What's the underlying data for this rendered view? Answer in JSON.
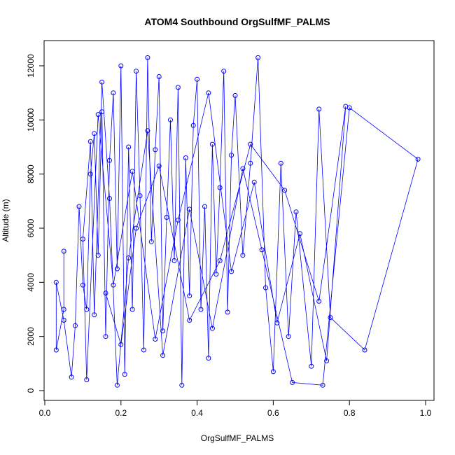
{
  "chart_data": {
    "type": "scatter",
    "title": "ATOM4 Southbound OrgSulfMF_PALMS",
    "xlabel": "OrgSulfMF_PALMS",
    "ylabel": "Altitude (m)",
    "xlim": [
      0.0,
      1.0
    ],
    "ylim": [
      0,
      12000
    ],
    "x_ticks": [
      0.0,
      0.2,
      0.4,
      0.6,
      0.8,
      1.0
    ],
    "x_tick_labels": [
      "0.0",
      "0.2",
      "0.4",
      "0.6",
      "0.8",
      "1.0"
    ],
    "y_ticks": [
      0,
      2000,
      4000,
      6000,
      8000,
      10000,
      12000
    ],
    "y_tick_labels": [
      "0",
      "2000",
      "4000",
      "6000",
      "8000",
      "10000",
      "12000"
    ],
    "grid": false,
    "legend": "none",
    "color": "#0000ff",
    "marker": "open-circle",
    "connected": true,
    "series": [
      {
        "x": [
          0.05,
          0.05,
          0.03,
          0.03,
          0.05,
          0.07,
          0.08,
          0.09,
          0.1,
          0.11,
          0.12,
          0.13,
          0.14,
          0.15,
          0.16,
          0.17,
          0.18,
          0.19,
          0.2,
          0.21,
          0.22,
          0.23,
          0.24,
          0.25,
          0.26,
          0.27,
          0.28,
          0.29,
          0.3,
          0.31,
          0.32,
          0.33,
          0.34,
          0.35,
          0.36,
          0.37,
          0.38,
          0.39,
          0.4,
          0.41,
          0.42,
          0.43,
          0.44,
          0.45,
          0.46,
          0.47,
          0.48,
          0.49,
          0.5,
          0.52,
          0.54,
          0.56,
          0.58,
          0.6,
          0.62,
          0.64,
          0.66,
          0.7,
          0.72,
          0.75,
          0.84,
          0.98,
          0.8,
          0.73,
          0.65,
          0.57,
          0.52,
          0.44,
          0.38,
          0.31,
          0.27,
          0.22,
          0.19,
          0.17,
          0.15,
          0.13,
          0.12,
          0.1,
          0.11,
          0.14,
          0.18,
          0.23,
          0.29,
          0.35,
          0.43,
          0.49,
          0.55,
          0.61,
          0.67,
          0.74,
          0.79,
          0.72,
          0.63,
          0.54,
          0.46,
          0.38,
          0.3,
          0.24,
          0.2,
          0.16
        ],
        "y": [
          5150,
          3000,
          1500,
          4000,
          2600,
          500,
          2400,
          6800,
          3900,
          3000,
          8000,
          9500,
          5000,
          10300,
          2000,
          8500,
          11000,
          4500,
          12000,
          600,
          9000,
          3000,
          11800,
          7200,
          1500,
          12300,
          5500,
          8900,
          11600,
          2200,
          6400,
          10000,
          4800,
          11200,
          200,
          8600,
          3500,
          9800,
          11500,
          3000,
          6800,
          1200,
          9100,
          4300,
          7500,
          11800,
          2900,
          8700,
          10900,
          5000,
          8400,
          12300,
          3800,
          700,
          8400,
          2000,
          6600,
          900,
          10400,
          2700,
          1500,
          8550,
          10450,
          200,
          300,
          5200,
          8200,
          2300,
          6700,
          1300,
          9600,
          4900,
          200,
          7100,
          11400,
          2800,
          9200,
          5600,
          400,
          10200,
          3900,
          8100,
          1900,
          6300,
          11000,
          4400,
          7700,
          2500,
          5800,
          1100,
          10500,
          3300,
          7400,
          9100,
          4800,
          2600,
          8300,
          6000,
          1700,
          3600
        ]
      }
    ]
  }
}
